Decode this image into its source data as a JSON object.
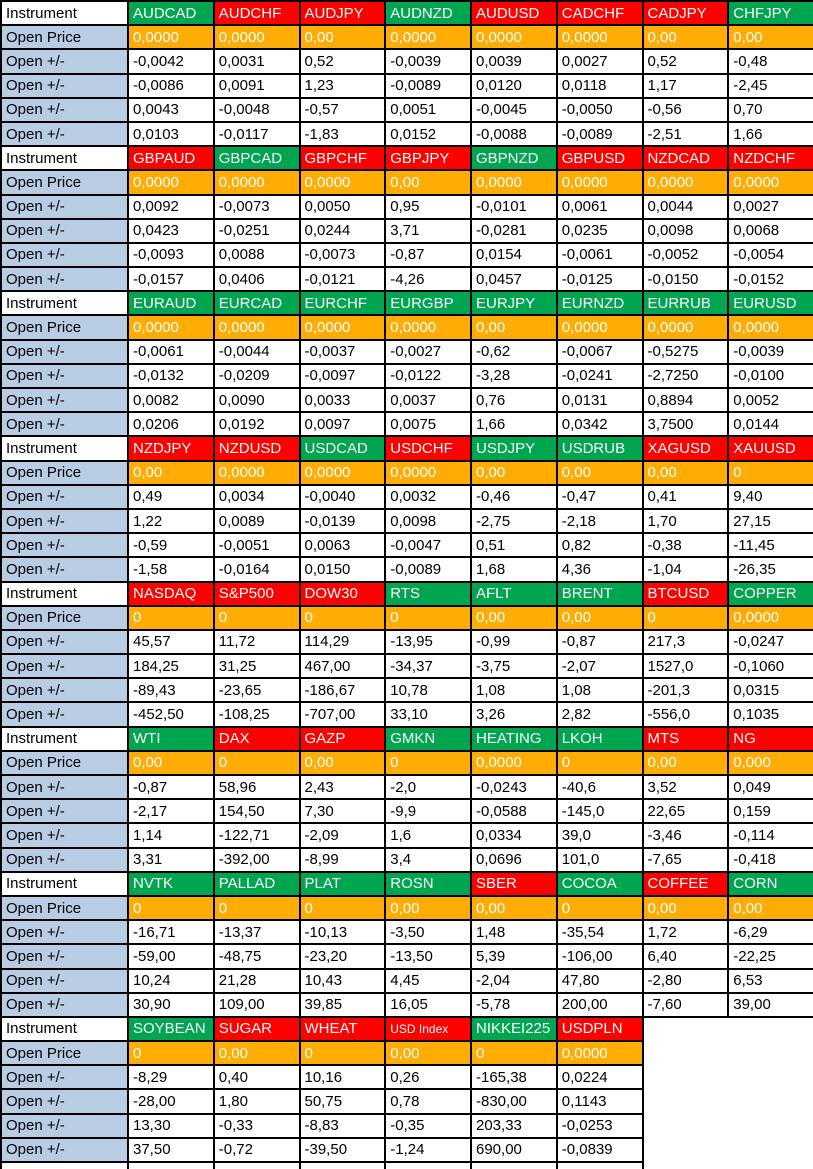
{
  "table": {
    "row_labels": {
      "instrument": "Instrument",
      "open_price": "Open Price",
      "open_change": "Open +/-"
    },
    "colors": {
      "green": "#00A550",
      "red": "#FE0000",
      "orange": "#FFAD05",
      "label_blue": "#B8CCE4",
      "header_text": "#FFFFFF",
      "value_text": "#000000",
      "border": "#000000"
    },
    "blocks": [
      {
        "instruments": [
          {
            "name": "AUDCAD",
            "color": "green"
          },
          {
            "name": "AUDCHF",
            "color": "red"
          },
          {
            "name": "AUDJPY",
            "color": "red"
          },
          {
            "name": "AUDNZD",
            "color": "green"
          },
          {
            "name": "AUDUSD",
            "color": "red"
          },
          {
            "name": "CADCHF",
            "color": "red"
          },
          {
            "name": "CADJPY",
            "color": "red"
          },
          {
            "name": "CHFJPY",
            "color": "green"
          }
        ],
        "open_price": [
          "0,0000",
          "0,0000",
          "0,00",
          "0,0000",
          "0,0000",
          "0,0000",
          "0,00",
          "0,00"
        ],
        "open_changes": [
          [
            "-0,0042",
            "0,0031",
            "0,52",
            "-0,0039",
            "0,0039",
            "0,0027",
            "0,52",
            "-0,48"
          ],
          [
            "-0,0086",
            "0,0091",
            "1,23",
            "-0,0089",
            "0,0120",
            "0,0118",
            "1,17",
            "-2,45"
          ],
          [
            "0,0043",
            "-0,0048",
            "-0,57",
            "0,0051",
            "-0,0045",
            "-0,0050",
            "-0,56",
            "0,70"
          ],
          [
            "0,0103",
            "-0,0117",
            "-1,83",
            "0,0152",
            "-0,0088",
            "-0,0089",
            "-2,51",
            "1,66"
          ]
        ]
      },
      {
        "instruments": [
          {
            "name": "GBPAUD",
            "color": "red"
          },
          {
            "name": "GBPCAD",
            "color": "green"
          },
          {
            "name": "GBPCHF",
            "color": "red"
          },
          {
            "name": "GBPJPY",
            "color": "red"
          },
          {
            "name": "GBPNZD",
            "color": "green"
          },
          {
            "name": "GBPUSD",
            "color": "red"
          },
          {
            "name": "NZDCAD",
            "color": "red"
          },
          {
            "name": "NZDCHF",
            "color": "red"
          }
        ],
        "open_price": [
          "0,0000",
          "0,0000",
          "0,0000",
          "0,00",
          "0,0000",
          "0,0000",
          "0,0000",
          "0,0000"
        ],
        "open_changes": [
          [
            "0,0092",
            "-0,0073",
            "0,0050",
            "0,95",
            "-0,0101",
            "0,0061",
            "0,0044",
            "0,0027"
          ],
          [
            "0,0423",
            "-0,0251",
            "0,0244",
            "3,71",
            "-0,0281",
            "0,0235",
            "0,0098",
            "0,0068"
          ],
          [
            "-0,0093",
            "0,0088",
            "-0,0073",
            "-0,87",
            "0,0154",
            "-0,0061",
            "-0,0052",
            "-0,0054"
          ],
          [
            "-0,0157",
            "0,0406",
            "-0,0121",
            "-4,26",
            "0,0457",
            "-0,0125",
            "-0,0150",
            "-0,0152"
          ]
        ]
      },
      {
        "instruments": [
          {
            "name": "EURAUD",
            "color": "green"
          },
          {
            "name": "EURCAD",
            "color": "green"
          },
          {
            "name": "EURCHF",
            "color": "green"
          },
          {
            "name": "EURGBP",
            "color": "green"
          },
          {
            "name": "EURJPY",
            "color": "green"
          },
          {
            "name": "EURNZD",
            "color": "green"
          },
          {
            "name": "EURRUB",
            "color": "green"
          },
          {
            "name": "EURUSD",
            "color": "green"
          }
        ],
        "open_price": [
          "0,0000",
          "0,0000",
          "0,0000",
          "0,0000",
          "0,00",
          "0,0000",
          "0,0000",
          "0,0000"
        ],
        "open_changes": [
          [
            "-0,0061",
            "-0,0044",
            "-0,0037",
            "-0,0027",
            "-0,62",
            "-0,0067",
            "-0,5275",
            "-0,0039"
          ],
          [
            "-0,0132",
            "-0,0209",
            "-0,0097",
            "-0,0122",
            "-3,28",
            "-0,0241",
            "-2,7250",
            "-0,0100"
          ],
          [
            "0,0082",
            "0,0090",
            "0,0033",
            "0,0037",
            "0,76",
            "0,0131",
            "0,8894",
            "0,0052"
          ],
          [
            "0,0206",
            "0,0192",
            "0,0097",
            "0,0075",
            "1,66",
            "0,0342",
            "3,7500",
            "0,0144"
          ]
        ]
      },
      {
        "instruments": [
          {
            "name": "NZDJPY",
            "color": "red"
          },
          {
            "name": "NZDUSD",
            "color": "red"
          },
          {
            "name": "USDCAD",
            "color": "green"
          },
          {
            "name": "USDCHF",
            "color": "red"
          },
          {
            "name": "USDJPY",
            "color": "green"
          },
          {
            "name": "USDRUB",
            "color": "green"
          },
          {
            "name": "XAGUSD",
            "color": "red"
          },
          {
            "name": "XAUUSD",
            "color": "red"
          }
        ],
        "open_price": [
          "0,00",
          "0,0000",
          "0,0000",
          "0,0000",
          "0,00",
          "0,00",
          "0,00",
          "0"
        ],
        "open_changes": [
          [
            "0,49",
            "0,0034",
            "-0,0040",
            "0,0032",
            "-0,46",
            "-0,47",
            "0,41",
            "9,40"
          ],
          [
            "1,22",
            "0,0089",
            "-0,0139",
            "0,0098",
            "-2,75",
            "-2,18",
            "1,70",
            "27,15"
          ],
          [
            "-0,59",
            "-0,0051",
            "0,0063",
            "-0,0047",
            "0,51",
            "0,82",
            "-0,38",
            "-11,45"
          ],
          [
            "-1,58",
            "-0,0164",
            "0,0150",
            "-0,0089",
            "1,68",
            "4,36",
            "-1,04",
            "-26,35"
          ]
        ]
      },
      {
        "instruments": [
          {
            "name": "NASDAQ",
            "color": "red"
          },
          {
            "name": "S&P500",
            "color": "red"
          },
          {
            "name": "DOW30",
            "color": "red"
          },
          {
            "name": "RTS",
            "color": "green"
          },
          {
            "name": "AFLT",
            "color": "green"
          },
          {
            "name": "BRENT",
            "color": "green"
          },
          {
            "name": "BTCUSD",
            "color": "red"
          },
          {
            "name": "COPPER",
            "color": "green"
          }
        ],
        "open_price": [
          "0",
          "0",
          "0",
          "0",
          "0,00",
          "0,00",
          "0",
          "0,0000"
        ],
        "open_changes": [
          [
            "45,57",
            "11,72",
            "114,29",
            "-13,95",
            "-0,99",
            "-0,87",
            "217,3",
            "-0,0247"
          ],
          [
            "184,25",
            "31,25",
            "467,00",
            "-34,37",
            "-3,75",
            "-2,07",
            "1527,0",
            "-0,1060"
          ],
          [
            "-89,43",
            "-23,65",
            "-186,67",
            "10,78",
            "1,08",
            "1,08",
            "-201,3",
            "0,0315"
          ],
          [
            "-452,50",
            "-108,25",
            "-707,00",
            "33,10",
            "3,26",
            "2,82",
            "-556,0",
            "0,1035"
          ]
        ]
      },
      {
        "instruments": [
          {
            "name": "WTI",
            "color": "green"
          },
          {
            "name": "DAX",
            "color": "red"
          },
          {
            "name": "GAZP",
            "color": "red"
          },
          {
            "name": "GMKN",
            "color": "green"
          },
          {
            "name": "HEATING",
            "color": "green"
          },
          {
            "name": "LKOH",
            "color": "green"
          },
          {
            "name": "MTS",
            "color": "red"
          },
          {
            "name": "NG",
            "color": "red"
          }
        ],
        "open_price": [
          "0,00",
          "0",
          "0,00",
          "0",
          "0,0000",
          "0",
          "0,00",
          "0,000"
        ],
        "open_changes": [
          [
            "-0,87",
            "58,96",
            "2,43",
            "-2,0",
            "-0,0243",
            "-40,6",
            "3,52",
            "0,049"
          ],
          [
            "-2,17",
            "154,50",
            "7,30",
            "-9,9",
            "-0,0588",
            "-145,0",
            "22,65",
            "0,159"
          ],
          [
            "1,14",
            "-122,71",
            "-2,09",
            "1,6",
            "0,0334",
            "39,0",
            "-3,46",
            "-0,114"
          ],
          [
            "3,31",
            "-392,00",
            "-8,99",
            "3,4",
            "0,0696",
            "101,0",
            "-7,65",
            "-0,418"
          ]
        ]
      },
      {
        "instruments": [
          {
            "name": "NVTK",
            "color": "green"
          },
          {
            "name": "PALLAD",
            "color": "green"
          },
          {
            "name": "PLAT",
            "color": "green"
          },
          {
            "name": "ROSN",
            "color": "green"
          },
          {
            "name": "SBER",
            "color": "red"
          },
          {
            "name": "COCOA",
            "color": "green"
          },
          {
            "name": "COFFEE",
            "color": "red"
          },
          {
            "name": "CORN",
            "color": "green"
          }
        ],
        "open_price": [
          "0",
          "0",
          "0",
          "0,00",
          "0,00",
          "0",
          "0,00",
          "0,00"
        ],
        "open_changes": [
          [
            "-16,71",
            "-13,37",
            "-10,13",
            "-3,50",
            "1,48",
            "-35,54",
            "1,72",
            "-6,29"
          ],
          [
            "-59,00",
            "-48,75",
            "-23,20",
            "-13,50",
            "5,39",
            "-106,00",
            "6,40",
            "-22,25"
          ],
          [
            "10,24",
            "21,28",
            "10,43",
            "4,45",
            "-2,04",
            "47,80",
            "-2,80",
            "6,53"
          ],
          [
            "30,90",
            "109,00",
            "39,85",
            "16,05",
            "-5,78",
            "200,00",
            "-7,60",
            "39,00"
          ]
        ]
      },
      {
        "instruments": [
          {
            "name": "SOYBEAN",
            "color": "green"
          },
          {
            "name": "SUGAR",
            "color": "red"
          },
          {
            "name": "WHEAT",
            "color": "red"
          },
          {
            "name": "USD Index",
            "color": "red",
            "small": true
          },
          {
            "name": "NIKKEI225",
            "color": "green"
          },
          {
            "name": "USDPLN",
            "color": "red"
          }
        ],
        "open_price": [
          "0",
          "0,00",
          "0",
          "0,00",
          "0",
          "0,0000"
        ],
        "open_changes": [
          [
            "-8,29",
            "0,40",
            "10,16",
            "0,26",
            "-165,38",
            "0,0224"
          ],
          [
            "-28,00",
            "1,80",
            "50,75",
            "0,78",
            "-830,00",
            "0,1143"
          ],
          [
            "13,30",
            "-0,33",
            "-8,83",
            "-0,35",
            "203,33",
            "-0,0253"
          ],
          [
            "37,50",
            "-0,72",
            "-39,50",
            "-1,24",
            "690,00",
            "-0,0839"
          ]
        ]
      }
    ]
  }
}
